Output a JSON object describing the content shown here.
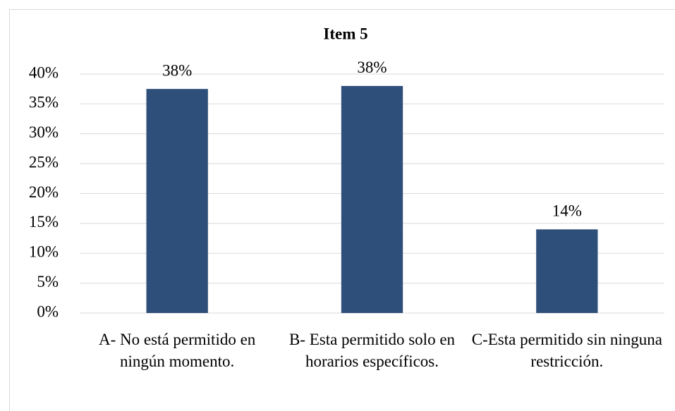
{
  "chart_data": {
    "type": "bar",
    "title": "Item 5",
    "categories": [
      "A- No está permitido en ningún momento.",
      "B- Esta permitido solo en horarios específicos.",
      "C-Esta permitido sin ninguna restricción."
    ],
    "values": [
      37.5,
      38,
      14
    ],
    "value_labels": [
      "38%",
      "38%",
      "14%"
    ],
    "color": "#2e4f79",
    "ylim": [
      0,
      40
    ],
    "yticks": [
      {
        "value": 0,
        "label": "0%"
      },
      {
        "value": 5,
        "label": "5%"
      },
      {
        "value": 10,
        "label": "10%"
      },
      {
        "value": 15,
        "label": "15%"
      },
      {
        "value": 20,
        "label": "20%"
      },
      {
        "value": 25,
        "label": "25%"
      },
      {
        "value": 30,
        "label": "30%"
      },
      {
        "value": 35,
        "label": "35%"
      },
      {
        "value": 40,
        "label": "40%"
      }
    ],
    "grid": true
  }
}
